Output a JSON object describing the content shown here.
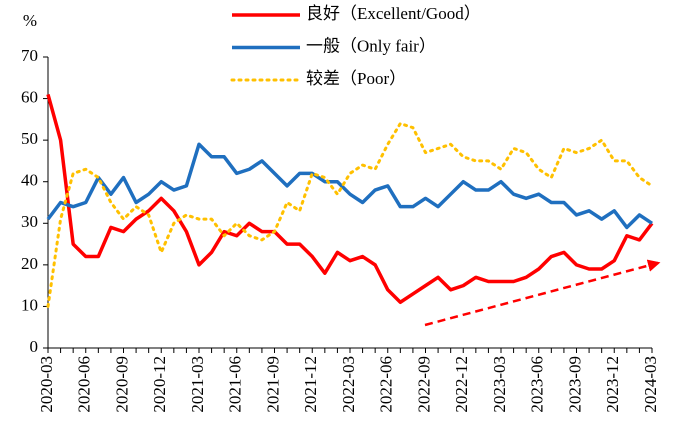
{
  "chart_data": {
    "type": "line",
    "y_label": "%",
    "categories": [
      "2020-03",
      null,
      null,
      "2020-06",
      null,
      null,
      "2020-09",
      null,
      null,
      "2020-12",
      null,
      null,
      "2021-03",
      null,
      null,
      "2021-06",
      null,
      null,
      "2021-09",
      null,
      null,
      "2021-12",
      null,
      null,
      "2022-03",
      null,
      null,
      "2022-06",
      null,
      null,
      "2022-09",
      null,
      null,
      "2022-12",
      null,
      null,
      "2023-03",
      null,
      null,
      "2023-06",
      null,
      null,
      "2023-09",
      null,
      null,
      "2023-12",
      null,
      null,
      "2024-03"
    ],
    "series": [
      {
        "name": "良好（Excellent/Good）",
        "color": "#ff0000",
        "style": "solid",
        "values": [
          61,
          50,
          25,
          22,
          22,
          29,
          28,
          31,
          33,
          36,
          33,
          28,
          20,
          23,
          28,
          27,
          30,
          28,
          28,
          25,
          25,
          22,
          18,
          23,
          21,
          22,
          20,
          14,
          11,
          13,
          15,
          17,
          14,
          15,
          17,
          16,
          16,
          16,
          17,
          19,
          22,
          23,
          20,
          19,
          19,
          21,
          27,
          26,
          30
        ]
      },
      {
        "name": "一般（Only fair）",
        "color": "#1f6fbf",
        "style": "solid",
        "values": [
          31,
          35,
          34,
          35,
          41,
          37,
          41,
          35,
          37,
          40,
          38,
          39,
          49,
          46,
          46,
          42,
          43,
          45,
          42,
          39,
          42,
          42,
          40,
          40,
          37,
          35,
          38,
          39,
          34,
          34,
          36,
          34,
          37,
          40,
          38,
          38,
          40,
          37,
          36,
          37,
          35,
          35,
          32,
          33,
          31,
          33,
          29,
          32,
          30
        ]
      },
      {
        "name": "较差（Poor）",
        "color": "#ffc000",
        "style": "dotted",
        "values": [
          10,
          31,
          42,
          43,
          41,
          35,
          31,
          34,
          32,
          23,
          30,
          32,
          31,
          31,
          27,
          30,
          27,
          26,
          28,
          35,
          33,
          42,
          41,
          37,
          42,
          44,
          43,
          49,
          54,
          53,
          47,
          48,
          49,
          46,
          45,
          45,
          43,
          48,
          47,
          43,
          41,
          48,
          47,
          48,
          50,
          45,
          45,
          41,
          39
        ]
      }
    ],
    "ylim": [
      0,
      70
    ],
    "yticks": [
      0,
      10,
      20,
      30,
      40,
      50,
      60,
      70
    ]
  }
}
